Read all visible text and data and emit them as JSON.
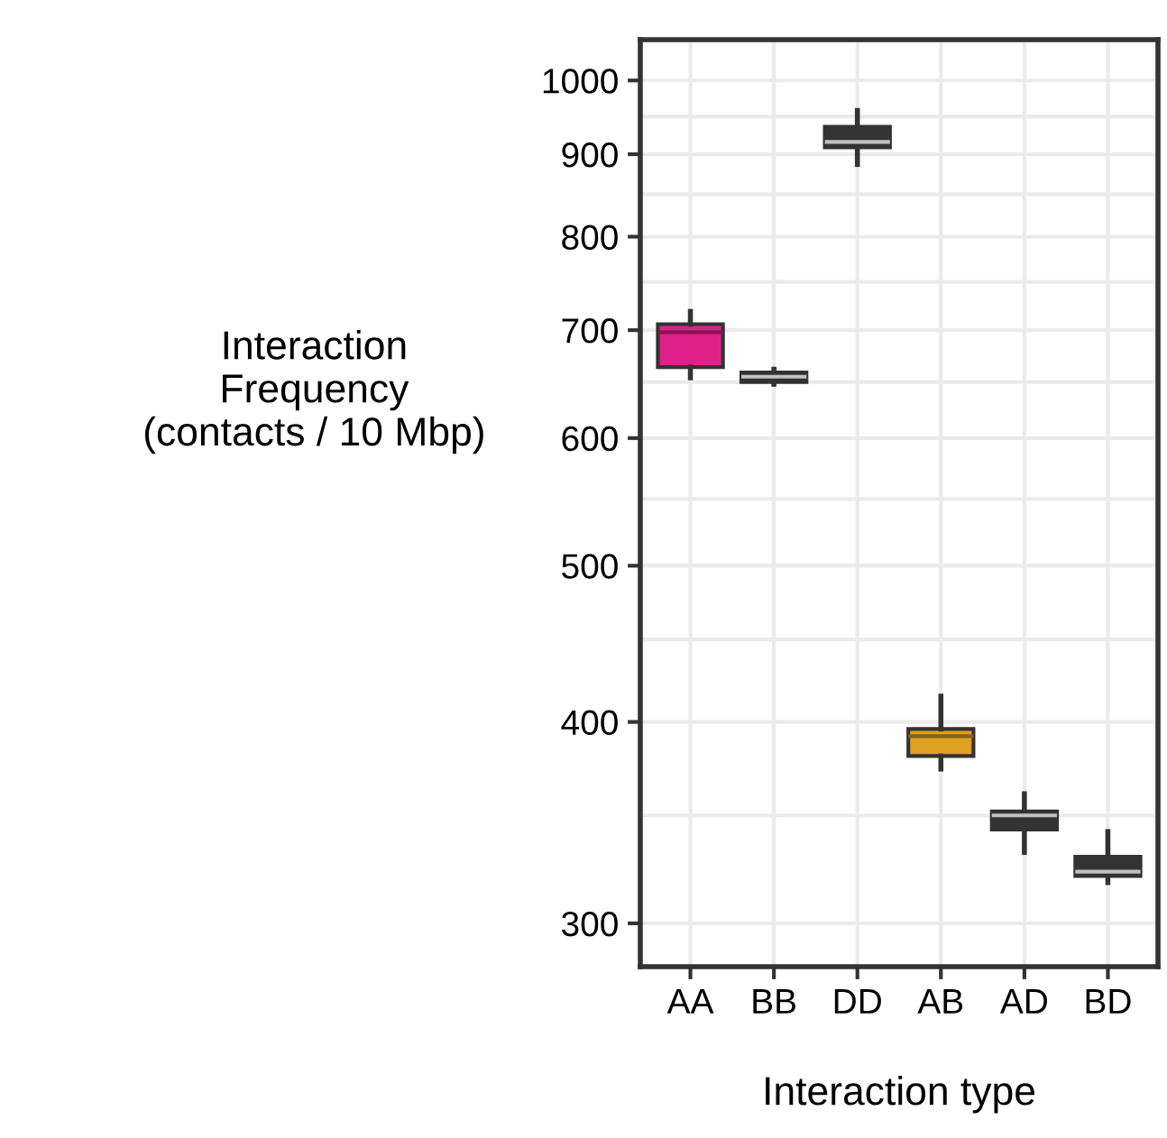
{
  "chart_data": {
    "type": "box",
    "xlabel": "Interaction type",
    "ylabel": "Interaction\nFrequency\n(contacts / 10 Mbp)",
    "categories": [
      "AA",
      "BB",
      "DD",
      "AB",
      "AD",
      "BD"
    ],
    "boxes": [
      {
        "low": 654,
        "q1": 664,
        "median": 698,
        "q3": 706,
        "high": 719
      },
      {
        "low": 648,
        "q1": 650,
        "median": 655,
        "q3": 659,
        "high": 662
      },
      {
        "low": 887,
        "q1": 909,
        "median": 916,
        "q3": 936,
        "high": 958
      },
      {
        "low": 374,
        "q1": 381,
        "median": 392,
        "q3": 396,
        "high": 415
      },
      {
        "low": 332,
        "q1": 343,
        "median": 350,
        "q3": 352,
        "high": 361
      },
      {
        "low": 318,
        "q1": 321,
        "median": 323,
        "q3": 330,
        "high": 342
      }
    ],
    "colors": [
      "#e0218a",
      "#333333",
      "#333333",
      "#e0a020",
      "#333333",
      "#333333"
    ],
    "log": true,
    "ylim": [
      282,
      1060
    ],
    "yticks": [
      300,
      {
        "value": 350,
        "label": null
      },
      400,
      {
        "value": 450,
        "label": null
      },
      500,
      {
        "value": 550,
        "label": null
      },
      600,
      {
        "value": 650,
        "label": null
      },
      700,
      {
        "value": 750,
        "label": null
      },
      800,
      {
        "value": 850,
        "label": null
      },
      900,
      {
        "value": 950,
        "label": null
      },
      1000
    ],
    "grid": true
  }
}
